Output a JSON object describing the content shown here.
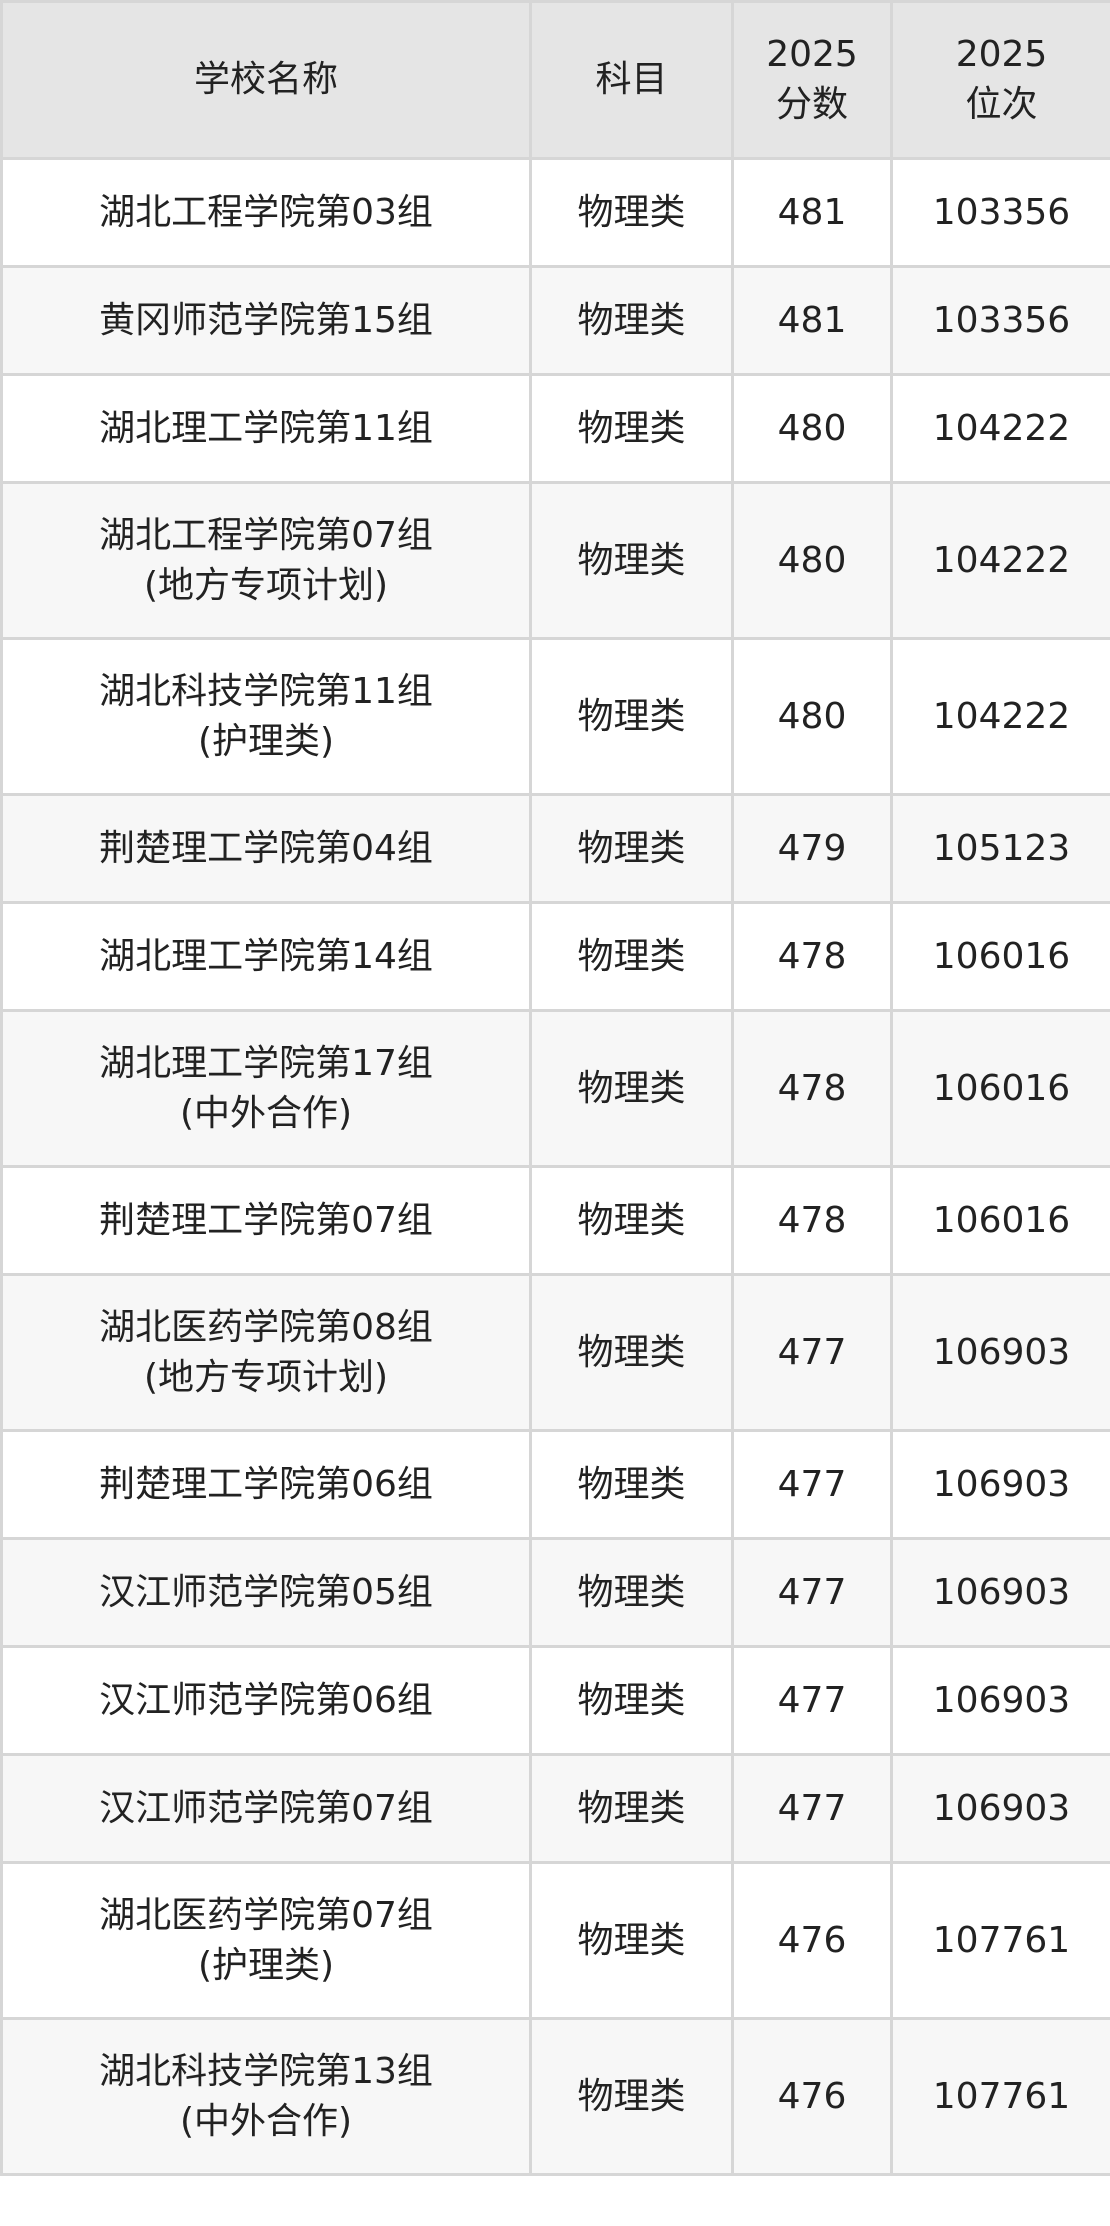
{
  "header": {
    "school": "学校名称",
    "subject": "科目",
    "score_year": "2025",
    "score_label": "分数",
    "rank_year": "2025",
    "rank_label": "位次"
  },
  "rows": [
    {
      "name": "湖北工程学院第03组",
      "note": "",
      "subject": "物理类",
      "score": "481",
      "rank": "103356"
    },
    {
      "name": "黄冈师范学院第15组",
      "note": "",
      "subject": "物理类",
      "score": "481",
      "rank": "103356"
    },
    {
      "name": "湖北理工学院第11组",
      "note": "",
      "subject": "物理类",
      "score": "480",
      "rank": "104222"
    },
    {
      "name": "湖北工程学院第07组",
      "note": "(地方专项计划)",
      "subject": "物理类",
      "score": "480",
      "rank": "104222"
    },
    {
      "name": "湖北科技学院第11组",
      "note": "(护理类)",
      "subject": "物理类",
      "score": "480",
      "rank": "104222"
    },
    {
      "name": "荆楚理工学院第04组",
      "note": "",
      "subject": "物理类",
      "score": "479",
      "rank": "105123"
    },
    {
      "name": "湖北理工学院第14组",
      "note": "",
      "subject": "物理类",
      "score": "478",
      "rank": "106016"
    },
    {
      "name": "湖北理工学院第17组",
      "note": "(中外合作)",
      "subject": "物理类",
      "score": "478",
      "rank": "106016"
    },
    {
      "name": "荆楚理工学院第07组",
      "note": "",
      "subject": "物理类",
      "score": "478",
      "rank": "106016"
    },
    {
      "name": "湖北医药学院第08组",
      "note": "(地方专项计划)",
      "subject": "物理类",
      "score": "477",
      "rank": "106903"
    },
    {
      "name": "荆楚理工学院第06组",
      "note": "",
      "subject": "物理类",
      "score": "477",
      "rank": "106903"
    },
    {
      "name": "汉江师范学院第05组",
      "note": "",
      "subject": "物理类",
      "score": "477",
      "rank": "106903"
    },
    {
      "name": "汉江师范学院第06组",
      "note": "",
      "subject": "物理类",
      "score": "477",
      "rank": "106903"
    },
    {
      "name": "汉江师范学院第07组",
      "note": "",
      "subject": "物理类",
      "score": "477",
      "rank": "106903"
    },
    {
      "name": "湖北医药学院第07组",
      "note": "(护理类)",
      "subject": "物理类",
      "score": "476",
      "rank": "107761"
    },
    {
      "name": "湖北科技学院第13组",
      "note": "(中外合作)",
      "subject": "物理类",
      "score": "476",
      "rank": "107761"
    }
  ]
}
